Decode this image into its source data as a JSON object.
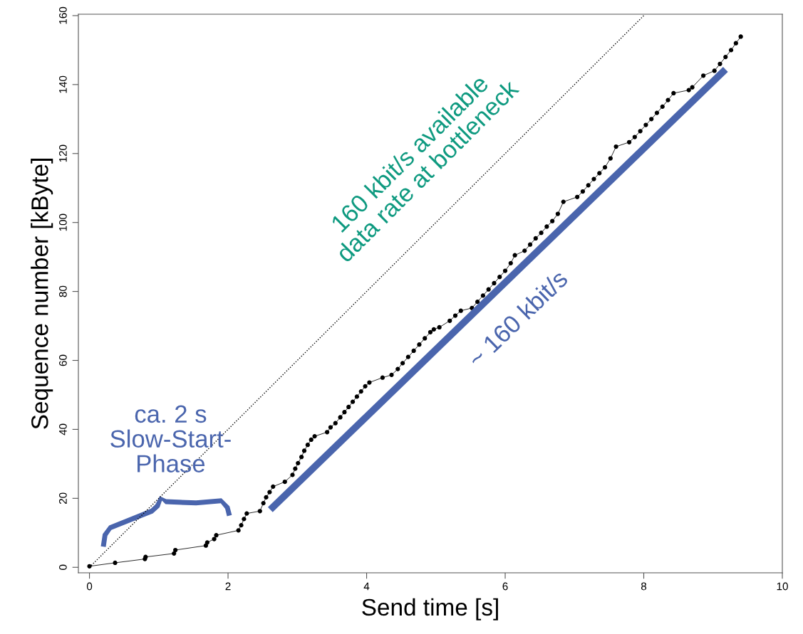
{
  "chart_data": {
    "type": "line",
    "xlabel": "Send time [s]",
    "ylabel": "Sequence number [kByte]",
    "xlim": [
      -0.16,
      10
    ],
    "ylim": [
      -1.6,
      160.4
    ],
    "xticks": [
      0,
      2,
      4,
      6,
      8,
      10
    ],
    "yticks": [
      0,
      20,
      40,
      60,
      80,
      100,
      120,
      140,
      160
    ],
    "grid": false,
    "legend": false,
    "series": [
      {
        "color": "#000000",
        "marker": "circle",
        "line_style": "solid",
        "x": [
          0,
          0.37,
          0.8,
          0.81,
          1.22,
          1.24,
          1.68,
          1.7,
          1.8,
          1.83,
          2.15,
          2.19,
          2.23,
          2.27,
          2.46,
          2.51,
          2.55,
          2.6,
          2.65,
          2.82,
          2.93,
          2.97,
          3.01,
          3.06,
          3.1,
          3.15,
          3.2,
          3.25,
          3.43,
          3.48,
          3.55,
          3.62,
          3.68,
          3.74,
          3.8,
          3.86,
          3.92,
          3.98,
          4.04,
          4.23,
          4.36,
          4.45,
          4.52,
          4.6,
          4.68,
          4.76,
          4.84,
          4.92,
          4.97,
          5.05,
          5.2,
          5.28,
          5.36,
          5.52,
          5.6,
          5.68,
          5.76,
          5.84,
          5.92,
          6.0,
          6.08,
          6.14,
          6.28,
          6.36,
          6.44,
          6.52,
          6.6,
          6.68,
          6.76,
          6.84,
          7.04,
          7.12,
          7.2,
          7.28,
          7.36,
          7.44,
          7.52,
          7.6,
          7.79,
          7.87,
          7.95,
          8.03,
          8.11,
          8.19,
          8.27,
          8.35,
          8.43,
          8.65,
          8.7,
          8.86,
          9.02,
          9.1,
          9.18,
          9.26,
          9.33,
          9.4
        ],
        "values": [
          0.3,
          1.3,
          2.4,
          3.0,
          4.0,
          5.0,
          6.3,
          7.2,
          8.2,
          9.3,
          10.7,
          12.2,
          14.0,
          15.6,
          16.3,
          18.6,
          20.3,
          21.8,
          23.4,
          24.8,
          26.8,
          28.6,
          30.2,
          32.0,
          33.8,
          35.5,
          37.0,
          38.0,
          39.2,
          40.6,
          41.8,
          43.5,
          45.0,
          46.5,
          48.0,
          49.5,
          51.0,
          52.5,
          53.6,
          55.0,
          55.8,
          57.5,
          59.2,
          61.0,
          62.8,
          64.6,
          66.4,
          68.2,
          69.0,
          69.6,
          71.5,
          73.0,
          74.4,
          75.2,
          77.0,
          78.8,
          80.6,
          82.4,
          84.2,
          86.0,
          88.2,
          90.5,
          91.8,
          93.6,
          95.4,
          97.0,
          98.8,
          100.4,
          102.5,
          106.0,
          107.4,
          109.0,
          110.8,
          112.6,
          114.3,
          116.0,
          118.6,
          122.0,
          123.3,
          124.8,
          126.5,
          128.3,
          130.0,
          131.8,
          133.6,
          135.5,
          137.5,
          138.4,
          139.2,
          142.6,
          144.0,
          146.0,
          148.0,
          150.0,
          152.0,
          153.9
        ]
      },
      {
        "color": "#000000",
        "marker": "none",
        "line_style": "dotted",
        "x": [
          0,
          8
        ],
        "values": [
          0,
          160
        ]
      },
      {
        "color": "#4a65ad",
        "marker": "none",
        "line_style": "solid",
        "x": [
          2.61,
          9.18
        ],
        "values": [
          16.7,
          144.4
        ]
      }
    ],
    "annotations": [
      "160 kbit/s available\ndata rate at bottleneck",
      "~ 160 kbit/s",
      "ca. 2 s\nSlow-Start-\nPhase"
    ]
  }
}
